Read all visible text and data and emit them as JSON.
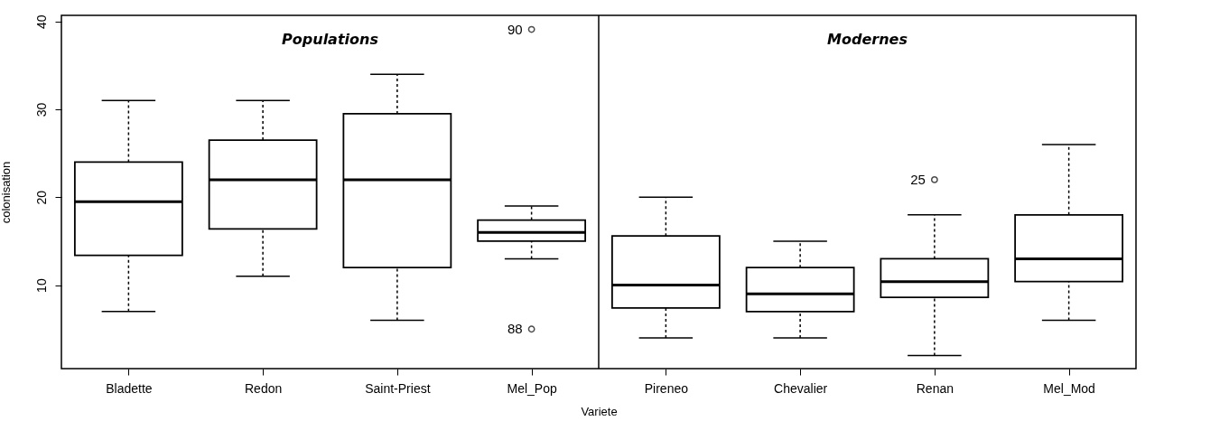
{
  "chart_data": {
    "type": "box",
    "xlabel": "Variete",
    "ylabel": "colonisation",
    "categories": [
      "Bladette",
      "Redon",
      "Saint-Priest",
      "Mel_Pop",
      "Pireneo",
      "Chevalier",
      "Renan",
      "Mel_Mod"
    ],
    "boxes": [
      {
        "low": 7,
        "q1": 13.4,
        "median": 19.5,
        "q3": 24,
        "high": 31
      },
      {
        "low": 11,
        "q1": 16.4,
        "median": 22,
        "q3": 26.5,
        "high": 31
      },
      {
        "low": 6,
        "q1": 12,
        "median": 22,
        "q3": 29.5,
        "high": 34
      },
      {
        "low": 13,
        "q1": 15,
        "median": 16,
        "q3": 17.4,
        "high": 19,
        "outliers": [
          39.1,
          5
        ]
      },
      {
        "low": 4,
        "q1": 7.4,
        "median": 10,
        "q3": 15.6,
        "high": 20
      },
      {
        "low": 4,
        "q1": 7,
        "median": 9,
        "q3": 12,
        "high": 15
      },
      {
        "low": 2,
        "q1": 8.6,
        "median": 10.4,
        "q3": 13,
        "high": 18,
        "outliers": [
          22
        ]
      },
      {
        "low": 6,
        "q1": 10.4,
        "median": 13,
        "q3": 18,
        "high": 26
      }
    ],
    "ylim": [
      0.5,
      40.7
    ],
    "yticks": [
      10,
      20,
      30,
      40
    ],
    "grid": false,
    "annotations": [
      "Populations",
      "Modernes",
      "90",
      "88",
      "25"
    ]
  }
}
